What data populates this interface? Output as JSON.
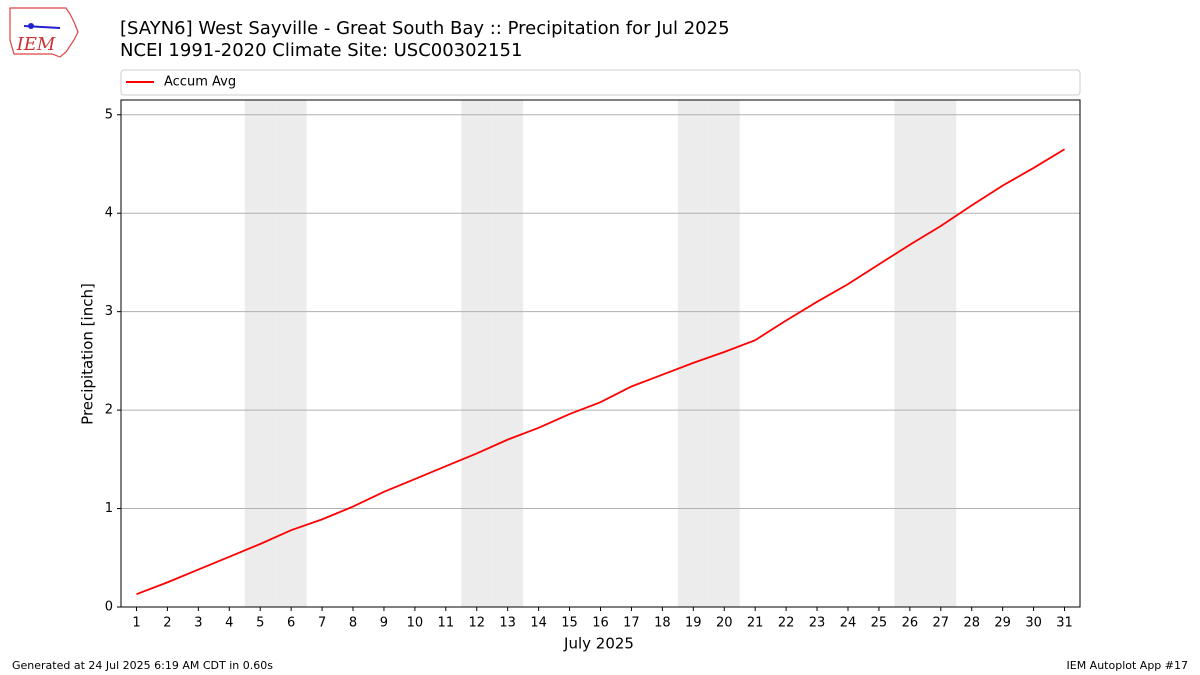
{
  "logo_text": "IEM",
  "chart_data": {
    "type": "line",
    "title": "[SAYN6] West Sayville - Great South Bay :: Precipitation for Jul 2025",
    "subtitle": "NCEI 1991-2020 Climate Site: USC00302151",
    "x_label": "July 2025",
    "y_label": "Precipitation [inch]",
    "x": [
      1,
      2,
      3,
      4,
      5,
      6,
      7,
      8,
      9,
      10,
      11,
      12,
      13,
      14,
      15,
      16,
      17,
      18,
      19,
      20,
      21,
      22,
      23,
      24,
      25,
      26,
      27,
      28,
      29,
      30,
      31
    ],
    "series": [
      {
        "name": "Accum Avg",
        "color": "#ff0000",
        "values": [
          0.13,
          0.25,
          0.38,
          0.51,
          0.64,
          0.78,
          0.89,
          1.02,
          1.17,
          1.3,
          1.43,
          1.56,
          1.7,
          1.82,
          1.96,
          2.08,
          2.24,
          2.36,
          2.48,
          2.59,
          2.71,
          2.91,
          3.1,
          3.28,
          3.48,
          3.68,
          3.87,
          4.08,
          4.28,
          4.46,
          4.65
        ]
      }
    ],
    "shaded_days": [
      5,
      6,
      12,
      13,
      19,
      20,
      26,
      27
    ],
    "xlim": [
      0.5,
      31.5
    ],
    "xticks": [
      1,
      2,
      3,
      4,
      5,
      6,
      7,
      8,
      9,
      10,
      11,
      12,
      13,
      14,
      15,
      16,
      17,
      18,
      19,
      20,
      21,
      22,
      23,
      24,
      25,
      26,
      27,
      28,
      29,
      30,
      31
    ],
    "ylim": [
      0,
      5.15
    ],
    "yticks": [
      0,
      1,
      2,
      3,
      4,
      5
    ],
    "grid": true,
    "legend": "top"
  },
  "footer": {
    "left": "Generated at 24 Jul 2025 6:19 AM CDT in 0.60s",
    "right": "IEM Autoplot App #17"
  }
}
